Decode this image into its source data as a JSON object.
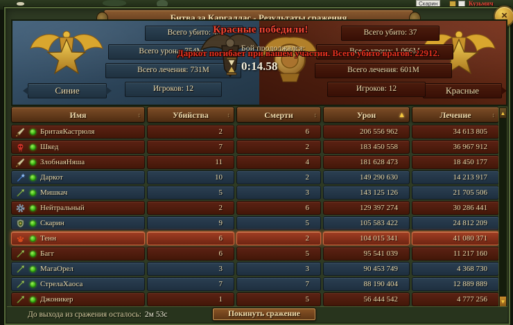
{
  "window": {
    "title": "Битва за Каргаллас - Результаты сражения",
    "close_glyph": "×"
  },
  "world": {
    "nameplate_left": "Скарин",
    "nameplate_right": "Кузьмич"
  },
  "summary": {
    "winner_banner": "Красные победили!",
    "duration_label": "Бой продолжался:",
    "duration_value": "0:14.58",
    "kill_message": "Даркот погибает при вашем участии. Всего убито врагов: 22912.",
    "teams": {
      "blue": {
        "name": "Синие",
        "stats": [
          {
            "text": "Всего убито: 43"
          },
          {
            "text": "Всего урона: 754М"
          },
          {
            "text": "Всего лечения: 731М"
          },
          {
            "text": "Игроков: 12"
          }
        ]
      },
      "red": {
        "name": "Красные",
        "stats": [
          {
            "text": "Всего убито: 37"
          },
          {
            "text": "Всего урона: 1 066М"
          },
          {
            "text": "Всего лечения: 601М"
          },
          {
            "text": "Игроков: 12"
          }
        ]
      }
    }
  },
  "table": {
    "columns": [
      {
        "label": "Имя",
        "sorted": false
      },
      {
        "label": "Убийства",
        "sorted": false
      },
      {
        "label": "Смерти",
        "sorted": false
      },
      {
        "label": "Урон",
        "sorted": true
      },
      {
        "label": "Лечение",
        "sorted": false
      }
    ],
    "rows": [
      {
        "name": "БритаяКастрюля",
        "class_icon": "sword-icon",
        "team": "red",
        "online": true,
        "kills": "2",
        "deaths": "6",
        "damage": "206 556 962",
        "healing": "34 613 805",
        "highlight": false
      },
      {
        "name": "Шкед",
        "class_icon": "skull-icon",
        "team": "red",
        "online": true,
        "kills": "7",
        "deaths": "2",
        "damage": "183 450 558",
        "healing": "36 967 912",
        "highlight": false
      },
      {
        "name": "ЗлобнаяНяша",
        "class_icon": "sword-icon",
        "team": "red",
        "online": true,
        "kills": "11",
        "deaths": "4",
        "damage": "181 628 473",
        "healing": "18 450 177",
        "highlight": false
      },
      {
        "name": "Даркот",
        "class_icon": "staff-icon",
        "team": "blue",
        "online": true,
        "kills": "10",
        "deaths": "2",
        "damage": "149 290 630",
        "healing": "14 213 917",
        "highlight": false
      },
      {
        "name": "Мишкач",
        "class_icon": "arrow-icon",
        "team": "blue",
        "online": true,
        "kills": "5",
        "deaths": "3",
        "damage": "143 125 126",
        "healing": "21 705 506",
        "highlight": false
      },
      {
        "name": "Нейтральный",
        "class_icon": "gear-icon",
        "team": "red",
        "online": true,
        "kills": "2",
        "deaths": "6",
        "damage": "129 397 274",
        "healing": "30 286 441",
        "highlight": false
      },
      {
        "name": "Скарин",
        "class_icon": "shield-icon",
        "team": "blue",
        "online": true,
        "kills": "9",
        "deaths": "5",
        "damage": "105 583 422",
        "healing": "24 812 209",
        "highlight": false
      },
      {
        "name": "Тенн",
        "class_icon": "paw-icon",
        "team": "red",
        "online": true,
        "kills": "6",
        "deaths": "2",
        "damage": "104 015 341",
        "healing": "41 080 371",
        "highlight": true
      },
      {
        "name": "Багг",
        "class_icon": "arrow-icon",
        "team": "red",
        "online": true,
        "kills": "6",
        "deaths": "5",
        "damage": "95 541 039",
        "healing": "11 217 160",
        "highlight": false
      },
      {
        "name": "МагаОрел",
        "class_icon": "arrow-icon",
        "team": "blue",
        "online": true,
        "kills": "3",
        "deaths": "3",
        "damage": "90 453 749",
        "healing": "4 368 730",
        "highlight": false
      },
      {
        "name": "СтрелаХаоса",
        "class_icon": "arrow-icon",
        "team": "blue",
        "online": true,
        "kills": "7",
        "deaths": "7",
        "damage": "88 190 404",
        "healing": "12 889 889",
        "highlight": false
      },
      {
        "name": "Джоникер",
        "class_icon": "arrow-icon",
        "team": "red",
        "online": true,
        "kills": "1",
        "deaths": "5",
        "damage": "56 444 542",
        "healing": "4 777 256",
        "highlight": false
      }
    ]
  },
  "footer": {
    "countdown_label": "До выхода из сражения осталось:",
    "countdown_value": "2м 53с",
    "leave_button": "Покинуть сражение"
  },
  "colors": {
    "gold_accent": "#f5c93e",
    "winner_text": "#f04833",
    "red_row": "#511c0c",
    "blue_row": "#253749",
    "highlight_row": "#8c3420",
    "banner_bronze": "#6b3f20"
  }
}
